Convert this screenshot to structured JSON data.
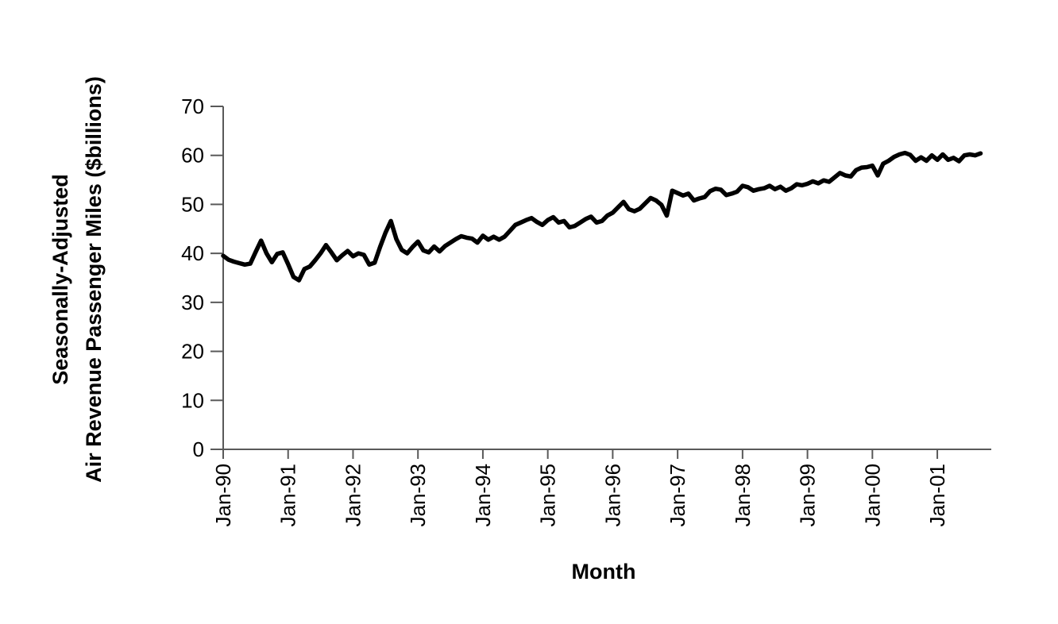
{
  "chart_data": {
    "type": "line",
    "title": "",
    "xlabel": "Month",
    "ylabel": "Seasonally-Adjusted Air Revenue Passenger Miles ($billions)",
    "ylabel_lines": [
      "Seasonally-Adjusted",
      "Air Revenue Passenger Miles ($billions)"
    ],
    "x_tick_labels": [
      "Jan-90",
      "Jan-91",
      "Jan-92",
      "Jan-93",
      "Jan-94",
      "Jan-95",
      "Jan-96",
      "Jan-97",
      "Jan-98",
      "Jan-99",
      "Jan-00",
      "Jan-01"
    ],
    "y_ticks": [
      0,
      10,
      20,
      30,
      40,
      50,
      60,
      70
    ],
    "ylim": [
      0,
      70
    ],
    "x_start": "Jan-1990",
    "x_end": "Sep-2001",
    "frequency": "monthly",
    "grid": false,
    "legend": false,
    "line_color": "#000000",
    "axis_color": "#595959",
    "values": [
      39.5,
      38.7,
      38.3,
      38.0,
      37.7,
      37.9,
      40.3,
      42.6,
      40.0,
      38.2,
      39.9,
      40.2,
      37.8,
      35.2,
      34.5,
      36.8,
      37.3,
      38.6,
      40.0,
      41.7,
      40.2,
      38.6,
      39.6,
      40.5,
      39.4,
      40.0,
      39.7,
      37.7,
      38.1,
      41.3,
      44.2,
      46.6,
      42.9,
      40.7,
      40.0,
      41.3,
      42.4,
      40.6,
      40.2,
      41.4,
      40.4,
      41.5,
      42.2,
      42.9,
      43.5,
      43.2,
      43.0,
      42.2,
      43.6,
      42.8,
      43.4,
      42.8,
      43.4,
      44.6,
      45.8,
      46.3,
      46.8,
      47.2,
      46.4,
      45.8,
      46.8,
      47.4,
      46.3,
      46.6,
      45.3,
      45.6,
      46.3,
      47.0,
      47.5,
      46.3,
      46.6,
      47.7,
      48.3,
      49.4,
      50.5,
      49.0,
      48.6,
      49.1,
      50.2,
      51.3,
      50.8,
      49.9,
      47.7,
      52.8,
      52.3,
      51.8,
      52.2,
      50.8,
      51.2,
      51.5,
      52.7,
      53.2,
      53.0,
      51.9,
      52.2,
      52.6,
      53.8,
      53.5,
      52.8,
      53.1,
      53.3,
      53.8,
      53.1,
      53.6,
      52.8,
      53.3,
      54.1,
      53.9,
      54.2,
      54.7,
      54.3,
      54.9,
      54.6,
      55.5,
      56.4,
      55.9,
      55.7,
      57.0,
      57.5,
      57.6,
      57.9,
      55.9,
      58.3,
      58.9,
      59.7,
      60.2,
      60.5,
      60.1,
      58.9,
      59.6,
      58.9,
      60.0,
      59.1,
      60.2,
      59.1,
      59.5,
      58.8,
      60.0,
      60.2,
      60.0,
      60.4
    ]
  }
}
